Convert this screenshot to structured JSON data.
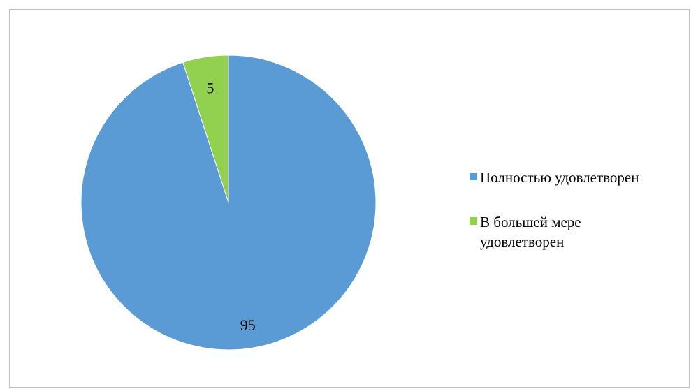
{
  "chart_data": {
    "type": "pie",
    "categories": [
      "Полностью удовлетворен",
      "В большей мере удовлетворен"
    ],
    "values": [
      95,
      5
    ],
    "colors": [
      "#5b9bd5",
      "#92d050"
    ],
    "data_labels": [
      "95",
      "5"
    ],
    "legend_position": "right",
    "start_angle_deg": 0,
    "direction": "clockwise"
  }
}
